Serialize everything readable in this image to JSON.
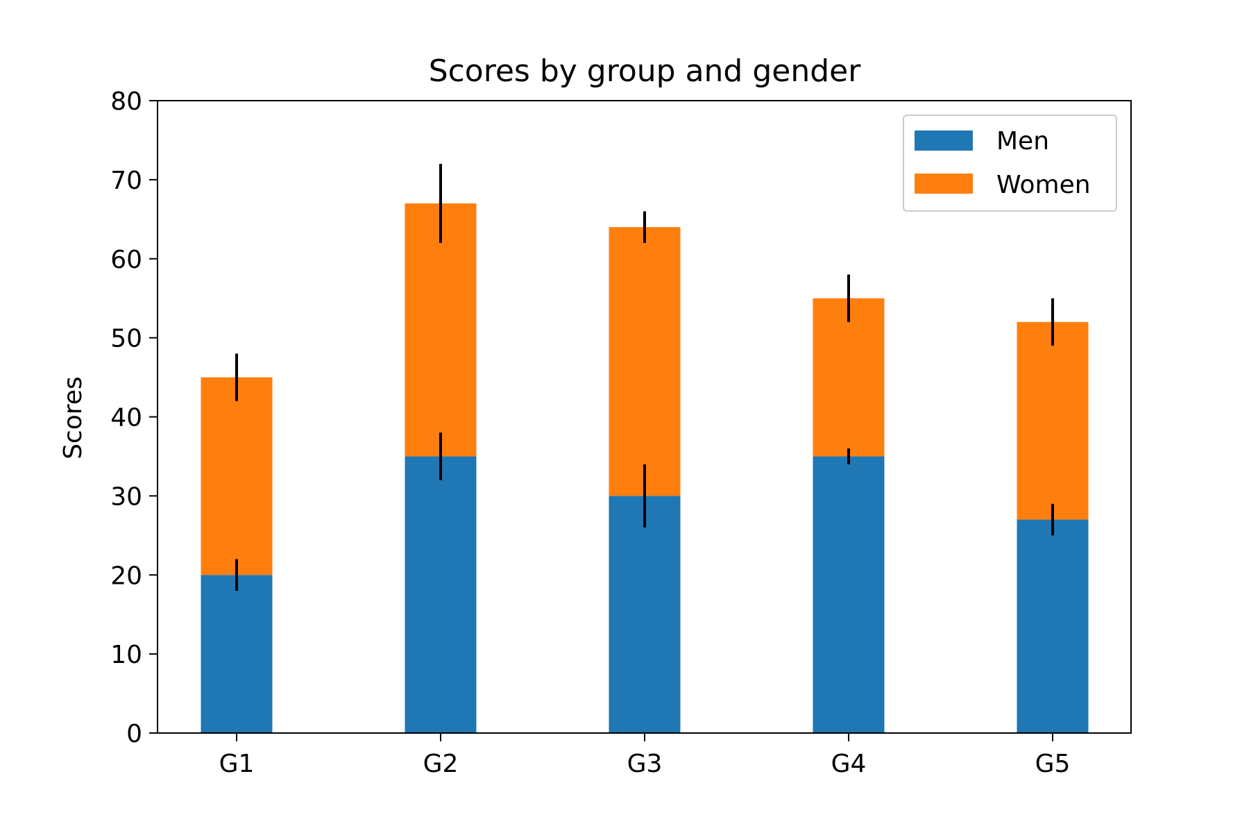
{
  "chart_data": {
    "type": "bar",
    "stacked": true,
    "title": "Scores by group and gender",
    "xlabel": "",
    "ylabel": "Scores",
    "categories": [
      "G1",
      "G2",
      "G3",
      "G4",
      "G5"
    ],
    "series": [
      {
        "name": "Men",
        "color": "#1f77b4",
        "values": [
          20,
          35,
          30,
          35,
          27
        ],
        "errors": [
          2,
          3,
          4,
          1,
          2
        ]
      },
      {
        "name": "Women",
        "color": "#ff7f0e",
        "values": [
          25,
          32,
          34,
          20,
          25
        ],
        "errors": [
          3,
          5,
          2,
          3,
          3
        ]
      }
    ],
    "ylim": [
      0,
      80
    ],
    "yticks": [
      0,
      10,
      20,
      30,
      40,
      50,
      60,
      70,
      80
    ],
    "ytick_labels": [
      "0",
      "10",
      "20",
      "30",
      "40",
      "50",
      "60",
      "70",
      "80"
    ],
    "grid": false,
    "legend_position": "top-right",
    "error_bar_color": "#000000"
  }
}
